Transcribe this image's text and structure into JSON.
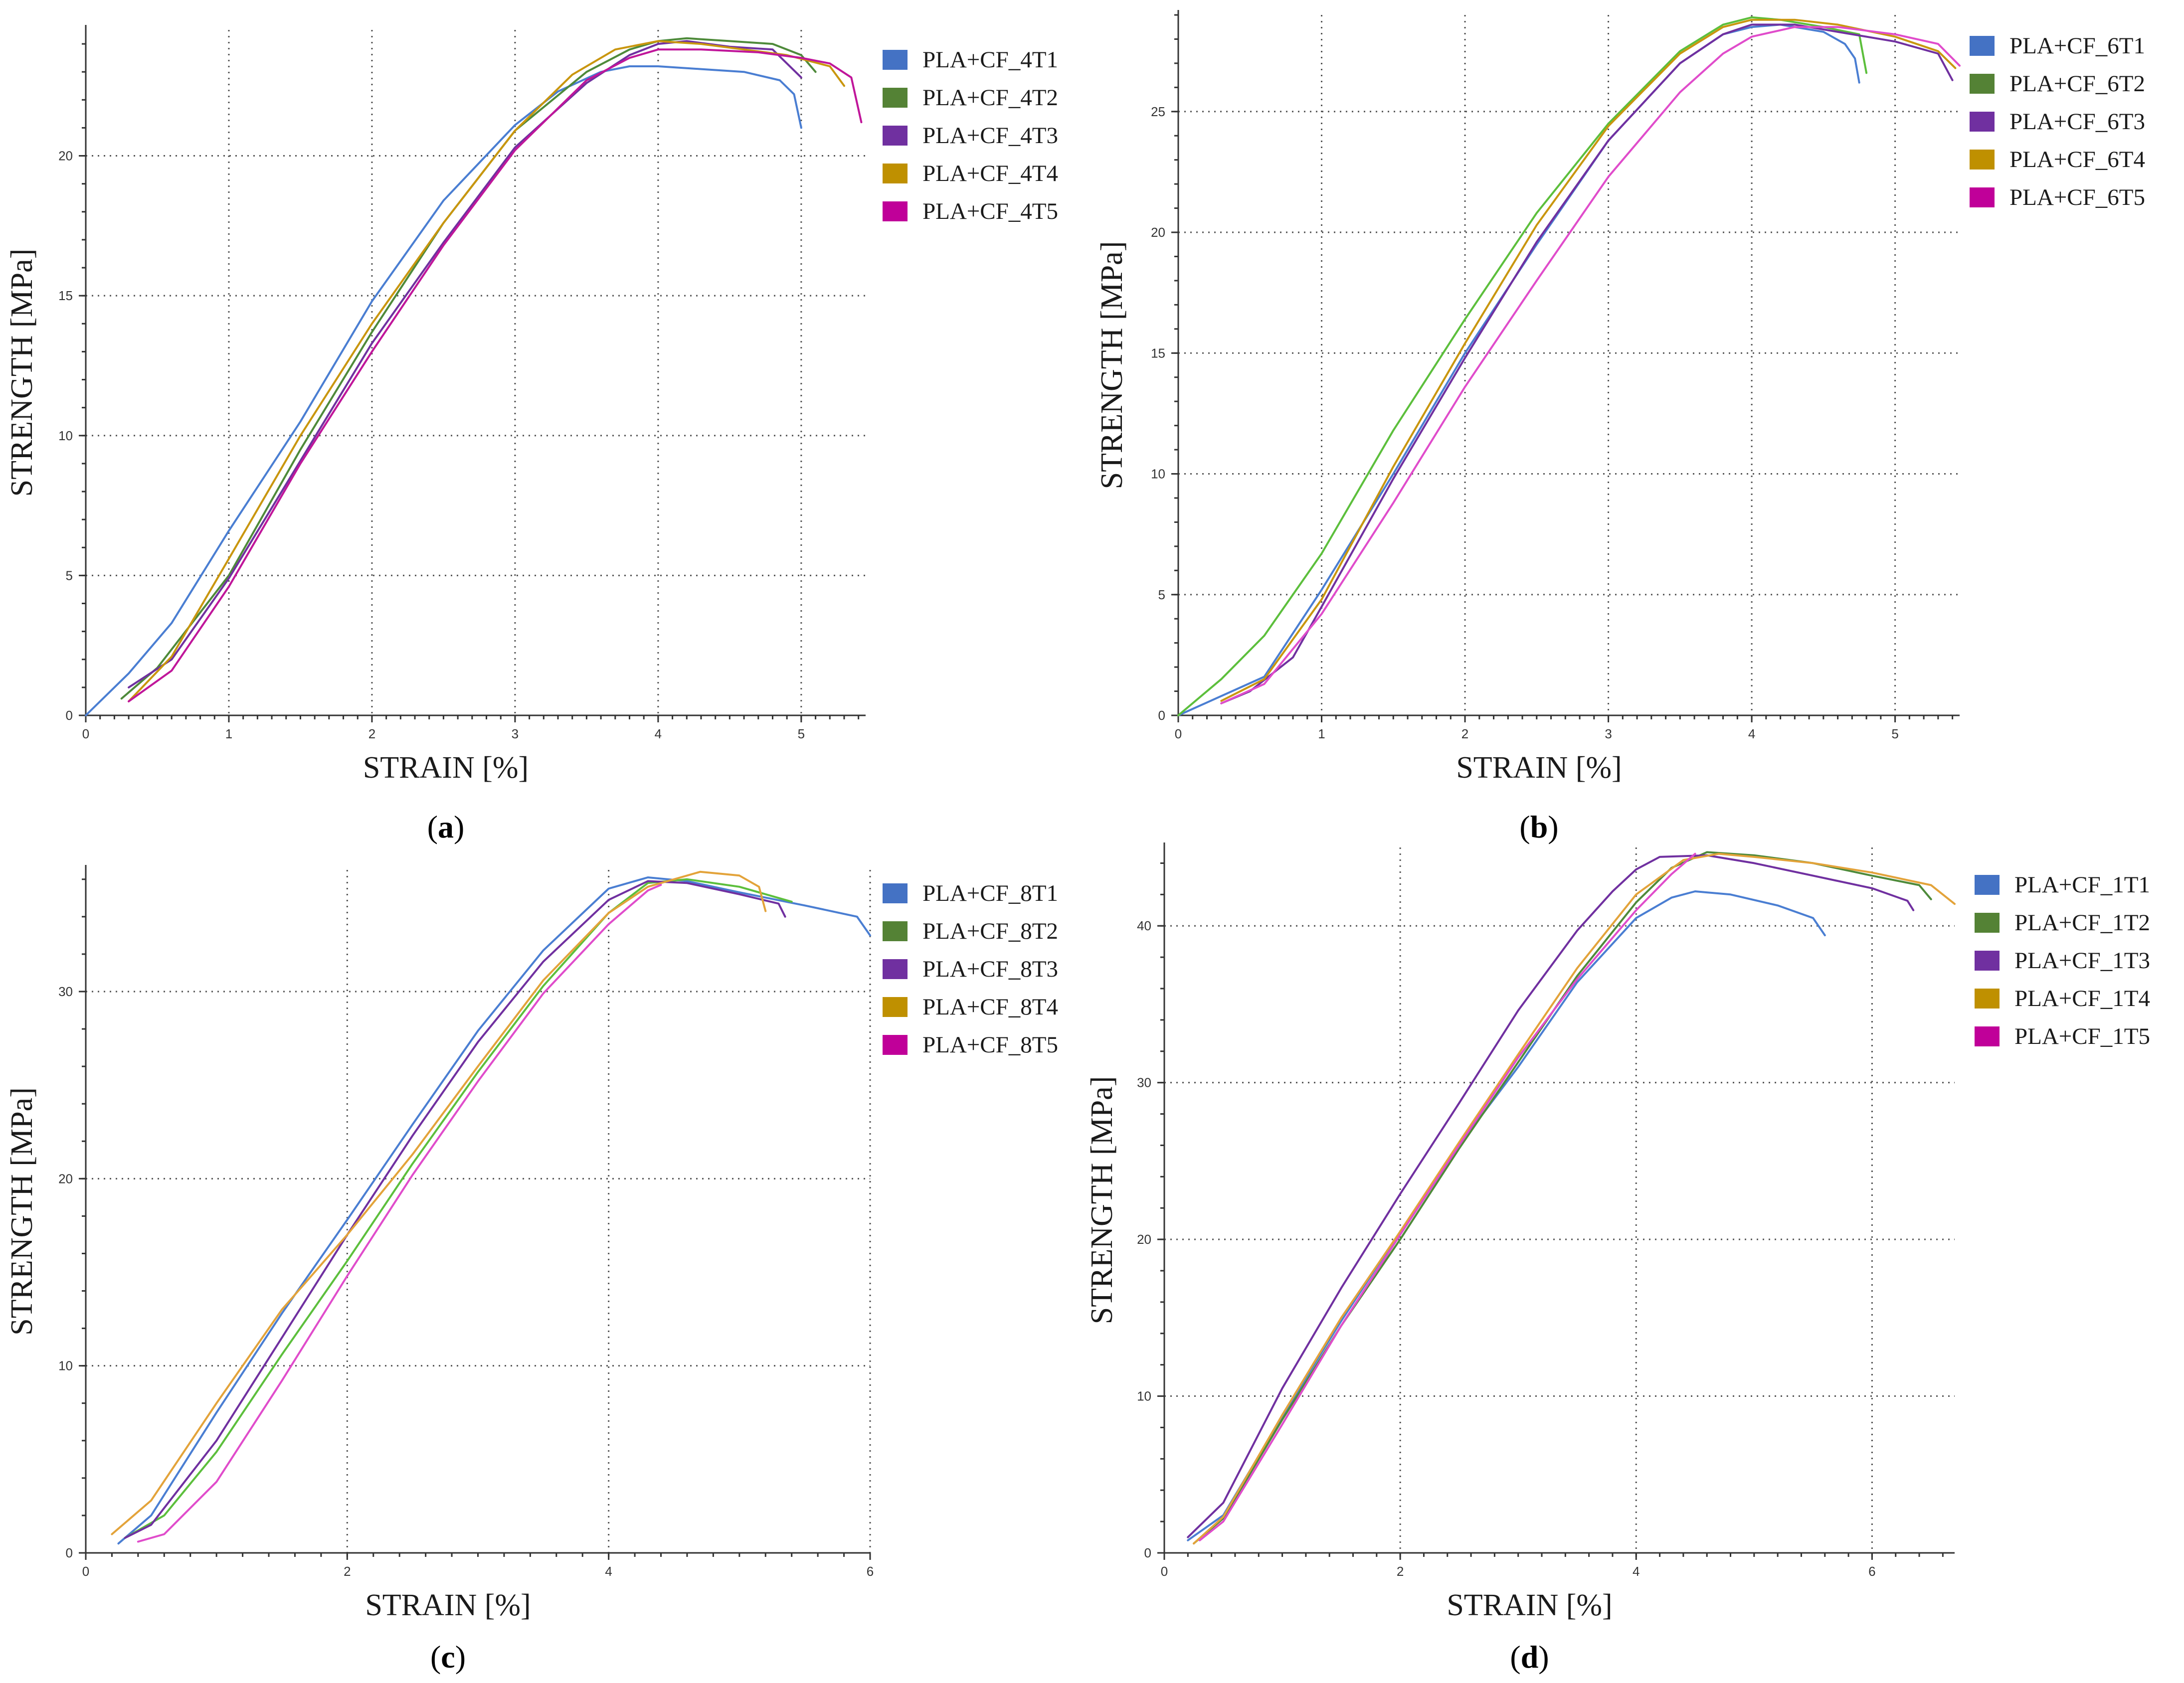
{
  "figure": {
    "panels": [
      "a",
      "b",
      "c",
      "d"
    ]
  },
  "chart_data": [
    {
      "type": "line",
      "panel_label": "a",
      "xlabel": "STRAIN [%]",
      "ylabel": "STRENGTH [MPa]",
      "xlim": [
        0,
        5.45
      ],
      "ylim": [
        0,
        24.5
      ],
      "xticks": [
        0,
        1,
        2,
        3,
        4,
        5
      ],
      "yticks": [
        0,
        5,
        10,
        15,
        20
      ],
      "grid": true,
      "legend_position": "top-right",
      "series": [
        {
          "name": "PLA+CF_4T1",
          "color": "#4a7ed2",
          "legend_color": "#4472c4",
          "x": [
            0,
            0.3,
            0.6,
            1.0,
            1.5,
            2.0,
            2.5,
            3.0,
            3.3,
            3.6,
            3.8,
            4.0,
            4.3,
            4.6,
            4.85,
            4.95,
            5.0
          ],
          "y": [
            0,
            1.5,
            3.3,
            6.6,
            10.5,
            14.8,
            18.4,
            21.1,
            22.3,
            23.0,
            23.2,
            23.2,
            23.1,
            23.0,
            22.7,
            22.2,
            21.0
          ]
        },
        {
          "name": "PLA+CF_4T2",
          "color": "#4e8a3a",
          "legend_color": "#548235",
          "x": [
            0.25,
            0.5,
            1.0,
            1.5,
            2.0,
            2.5,
            3.0,
            3.5,
            3.8,
            4.0,
            4.2,
            4.5,
            4.8,
            5.0,
            5.1
          ],
          "y": [
            0.6,
            1.7,
            5.0,
            9.5,
            13.7,
            17.6,
            20.9,
            23.0,
            23.8,
            24.1,
            24.2,
            24.1,
            24.0,
            23.6,
            23.0
          ]
        },
        {
          "name": "PLA+CF_4T3",
          "color": "#7030a0",
          "legend_color": "#7030a0",
          "x": [
            0.3,
            0.6,
            1.0,
            1.5,
            2.0,
            2.5,
            3.0,
            3.5,
            3.8,
            4.0,
            4.2,
            4.5,
            4.8,
            5.0
          ],
          "y": [
            1.0,
            2.0,
            4.9,
            9.1,
            13.3,
            16.9,
            20.3,
            22.6,
            23.6,
            24.0,
            24.1,
            23.9,
            23.8,
            22.8
          ]
        },
        {
          "name": "PLA+CF_4T4",
          "color": "#c9960e",
          "legend_color": "#bf9000",
          "x": [
            0.3,
            0.6,
            1.0,
            1.5,
            2.0,
            2.5,
            3.0,
            3.4,
            3.7,
            4.0,
            4.3,
            4.6,
            4.9,
            5.2,
            5.3
          ],
          "y": [
            0.5,
            2.1,
            5.6,
            10.0,
            14.0,
            17.6,
            20.9,
            22.9,
            23.8,
            24.1,
            24.0,
            23.8,
            23.6,
            23.2,
            22.5
          ]
        },
        {
          "name": "PLA+CF_4T5",
          "color": "#c0169a",
          "legend_color": "#c00099",
          "x": [
            0.3,
            0.6,
            1.0,
            1.5,
            2.0,
            2.5,
            3.0,
            3.5,
            3.8,
            4.0,
            4.3,
            4.7,
            5.0,
            5.2,
            5.35,
            5.42
          ],
          "y": [
            0.5,
            1.6,
            4.6,
            9.0,
            13.0,
            16.8,
            20.2,
            22.7,
            23.5,
            23.8,
            23.8,
            23.7,
            23.5,
            23.3,
            22.8,
            21.2
          ]
        }
      ]
    },
    {
      "type": "line",
      "panel_label": "b",
      "xlabel": "STRAIN [%]",
      "ylabel": "STRENGTH [MPa]",
      "xlim": [
        0,
        5.45
      ],
      "ylim": [
        0,
        29.0
      ],
      "xticks": [
        0,
        1,
        2,
        3,
        4,
        5
      ],
      "yticks": [
        0,
        5,
        10,
        15,
        20,
        25
      ],
      "grid": true,
      "legend_position": "top-right",
      "series": [
        {
          "name": "PLA+CF_6T1",
          "color": "#4a7ed2",
          "legend_color": "#4472c4",
          "x": [
            0,
            0.3,
            0.6,
            1.0,
            1.5,
            2.0,
            2.5,
            3.0,
            3.5,
            3.8,
            4.0,
            4.2,
            4.5,
            4.65,
            4.72,
            4.75
          ],
          "y": [
            0,
            0.8,
            1.6,
            5.2,
            10.0,
            15.0,
            19.5,
            23.8,
            27.0,
            28.2,
            28.5,
            28.6,
            28.3,
            27.8,
            27.2,
            26.2
          ]
        },
        {
          "name": "PLA+CF_6T2",
          "color": "#5cbf3c",
          "legend_color": "#548235",
          "x": [
            0,
            0.3,
            0.6,
            1.0,
            1.5,
            2.0,
            2.5,
            3.0,
            3.5,
            3.8,
            4.0,
            4.2,
            4.5,
            4.75,
            4.8
          ],
          "y": [
            0,
            1.5,
            3.3,
            6.7,
            11.8,
            16.4,
            20.8,
            24.5,
            27.5,
            28.6,
            28.9,
            28.8,
            28.5,
            28.2,
            26.6
          ]
        },
        {
          "name": "PLA+CF_6T3",
          "color": "#7030a0",
          "legend_color": "#7030a0",
          "x": [
            0.3,
            0.5,
            0.8,
            1.0,
            1.5,
            2.0,
            2.5,
            3.0,
            3.5,
            3.8,
            4.0,
            4.3,
            4.6,
            5.0,
            5.3,
            5.4
          ],
          "y": [
            0.5,
            1.0,
            2.4,
            4.5,
            9.8,
            14.8,
            19.6,
            23.8,
            27.0,
            28.2,
            28.6,
            28.6,
            28.3,
            27.9,
            27.4,
            26.3
          ]
        },
        {
          "name": "PLA+CF_6T4",
          "color": "#c9960e",
          "legend_color": "#bf9000",
          "x": [
            0.3,
            0.6,
            1.0,
            1.5,
            2.0,
            2.5,
            3.0,
            3.5,
            3.8,
            4.0,
            4.3,
            4.6,
            5.0,
            5.3,
            5.42
          ],
          "y": [
            0.6,
            1.5,
            4.8,
            10.3,
            15.4,
            20.3,
            24.4,
            27.4,
            28.5,
            28.8,
            28.8,
            28.6,
            28.1,
            27.5,
            26.8
          ]
        },
        {
          "name": "PLA+CF_6T5",
          "color": "#e04ccb",
          "legend_color": "#c00099",
          "x": [
            0.3,
            0.6,
            1.0,
            1.5,
            2.0,
            2.5,
            3.0,
            3.5,
            3.8,
            4.0,
            4.3,
            4.6,
            5.0,
            5.3,
            5.45
          ],
          "y": [
            0.5,
            1.3,
            4.2,
            8.8,
            13.6,
            18.0,
            22.3,
            25.8,
            27.4,
            28.1,
            28.5,
            28.5,
            28.2,
            27.8,
            26.9
          ]
        }
      ]
    },
    {
      "type": "line",
      "panel_label": "c",
      "xlabel": "STRAIN [%]",
      "ylabel": "STRENGTH [MPa]",
      "xlim": [
        0,
        6.0
      ],
      "ylim": [
        0,
        36.5
      ],
      "xticks": [
        0,
        2,
        4,
        6
      ],
      "yticks": [
        0,
        10,
        20,
        30
      ],
      "grid": true,
      "legend_position": "top-right",
      "series": [
        {
          "name": "PLA+CF_8T1",
          "color": "#4a7ed2",
          "legend_color": "#4472c4",
          "x": [
            0.25,
            0.5,
            1.0,
            1.5,
            2.0,
            2.5,
            3.0,
            3.5,
            4.0,
            4.3,
            4.6,
            5.0,
            5.5,
            5.9,
            6.0
          ],
          "y": [
            0.5,
            2.0,
            7.5,
            12.8,
            17.8,
            22.9,
            27.9,
            32.2,
            35.5,
            36.1,
            35.9,
            35.3,
            34.6,
            34.0,
            33.0
          ]
        },
        {
          "name": "PLA+CF_8T2",
          "color": "#5cbf3c",
          "legend_color": "#548235",
          "x": [
            0.3,
            0.6,
            1.0,
            1.5,
            2.0,
            2.5,
            3.0,
            3.5,
            4.0,
            4.3,
            4.6,
            5.0,
            5.4
          ],
          "y": [
            0.8,
            2.0,
            5.4,
            10.6,
            15.6,
            20.8,
            25.7,
            30.3,
            34.2,
            35.8,
            36.0,
            35.6,
            34.8
          ]
        },
        {
          "name": "PLA+CF_8T3",
          "color": "#7030a0",
          "legend_color": "#7030a0",
          "x": [
            0.3,
            0.5,
            1.0,
            1.5,
            2.0,
            2.5,
            3.0,
            3.5,
            4.0,
            4.3,
            4.6,
            5.0,
            5.3,
            5.35
          ],
          "y": [
            0.8,
            1.5,
            6.0,
            11.5,
            17.0,
            22.3,
            27.3,
            31.6,
            34.9,
            35.9,
            35.8,
            35.2,
            34.7,
            34.0
          ]
        },
        {
          "name": "PLA+CF_8T4",
          "color": "#e3a33a",
          "legend_color": "#bf9000",
          "x": [
            0.2,
            0.5,
            1.0,
            1.5,
            2.0,
            2.5,
            3.0,
            3.5,
            4.0,
            4.3,
            4.7,
            5.0,
            5.15,
            5.2
          ],
          "y": [
            1.0,
            2.8,
            8.0,
            13.0,
            17.0,
            21.3,
            26.0,
            30.6,
            34.2,
            35.6,
            36.4,
            36.2,
            35.6,
            34.3
          ]
        },
        {
          "name": "PLA+CF_8T5",
          "color": "#e04ccb",
          "legend_color": "#c00099",
          "x": [
            0.4,
            0.6,
            1.0,
            1.5,
            2.0,
            2.5,
            3.0,
            3.5,
            4.0,
            4.3,
            4.4
          ],
          "y": [
            0.6,
            1.0,
            3.8,
            9.2,
            14.8,
            20.2,
            25.2,
            29.9,
            33.6,
            35.4,
            35.7
          ]
        }
      ]
    },
    {
      "type": "line",
      "panel_label": "d",
      "xlabel": "STRAIN [%]",
      "ylabel": "STRENGTH [MPa]",
      "xlim": [
        0,
        6.7
      ],
      "ylim": [
        0,
        45.0
      ],
      "xticks": [
        0,
        2,
        4,
        6
      ],
      "yticks": [
        0,
        10,
        20,
        30,
        40
      ],
      "grid": true,
      "legend_position": "top-right",
      "series": [
        {
          "name": "PLA+CF_1T1",
          "color": "#4a7ed2",
          "legend_color": "#4472c4",
          "x": [
            0.2,
            0.5,
            1.0,
            1.5,
            2.0,
            2.5,
            3.0,
            3.5,
            4.0,
            4.3,
            4.5,
            4.8,
            5.2,
            5.5,
            5.6
          ],
          "y": [
            0.8,
            2.4,
            8.7,
            14.8,
            20.5,
            26.0,
            31.0,
            36.4,
            40.5,
            41.8,
            42.2,
            42.0,
            41.3,
            40.5,
            39.4
          ]
        },
        {
          "name": "PLA+CF_1T2",
          "color": "#4e8a3a",
          "legend_color": "#548235",
          "x": [
            0.25,
            0.5,
            1.0,
            1.5,
            2.0,
            2.5,
            3.0,
            3.5,
            4.0,
            4.3,
            4.6,
            5.0,
            5.5,
            6.0,
            6.4,
            6.5
          ],
          "y": [
            0.6,
            2.2,
            8.5,
            14.5,
            20.0,
            25.8,
            31.3,
            36.8,
            41.5,
            43.7,
            44.7,
            44.5,
            44.0,
            43.2,
            42.6,
            41.7
          ]
        },
        {
          "name": "PLA+CF_1T3",
          "color": "#7030a0",
          "legend_color": "#7030a0",
          "x": [
            0.2,
            0.5,
            1.0,
            1.5,
            2.0,
            2.5,
            3.0,
            3.5,
            3.8,
            4.0,
            4.2,
            4.6,
            5.0,
            5.5,
            6.0,
            6.3,
            6.35
          ],
          "y": [
            1.0,
            3.2,
            10.5,
            16.9,
            22.9,
            28.7,
            34.6,
            39.7,
            42.2,
            43.6,
            44.4,
            44.5,
            44.0,
            43.2,
            42.4,
            41.6,
            41.0
          ]
        },
        {
          "name": "PLA+CF_1T4",
          "color": "#e3a33a",
          "legend_color": "#bf9000",
          "x": [
            0.25,
            0.5,
            1.0,
            1.5,
            2.0,
            2.5,
            3.0,
            3.5,
            4.0,
            4.4,
            4.7,
            5.0,
            5.5,
            6.0,
            6.5,
            6.7
          ],
          "y": [
            0.6,
            2.3,
            8.8,
            15.0,
            20.5,
            26.2,
            31.8,
            37.3,
            42.0,
            44.2,
            44.6,
            44.4,
            44.0,
            43.4,
            42.6,
            41.4
          ]
        },
        {
          "name": "PLA+CF_1T5",
          "color": "#e04ccb",
          "legend_color": "#c00099",
          "x": [
            0.3,
            0.5,
            1.0,
            1.5,
            2.0,
            2.5,
            3.0,
            3.5,
            4.0,
            4.3,
            4.5
          ],
          "y": [
            0.8,
            2.0,
            8.2,
            14.5,
            20.3,
            26.0,
            31.6,
            36.6,
            41.0,
            43.3,
            44.6
          ]
        }
      ]
    }
  ]
}
